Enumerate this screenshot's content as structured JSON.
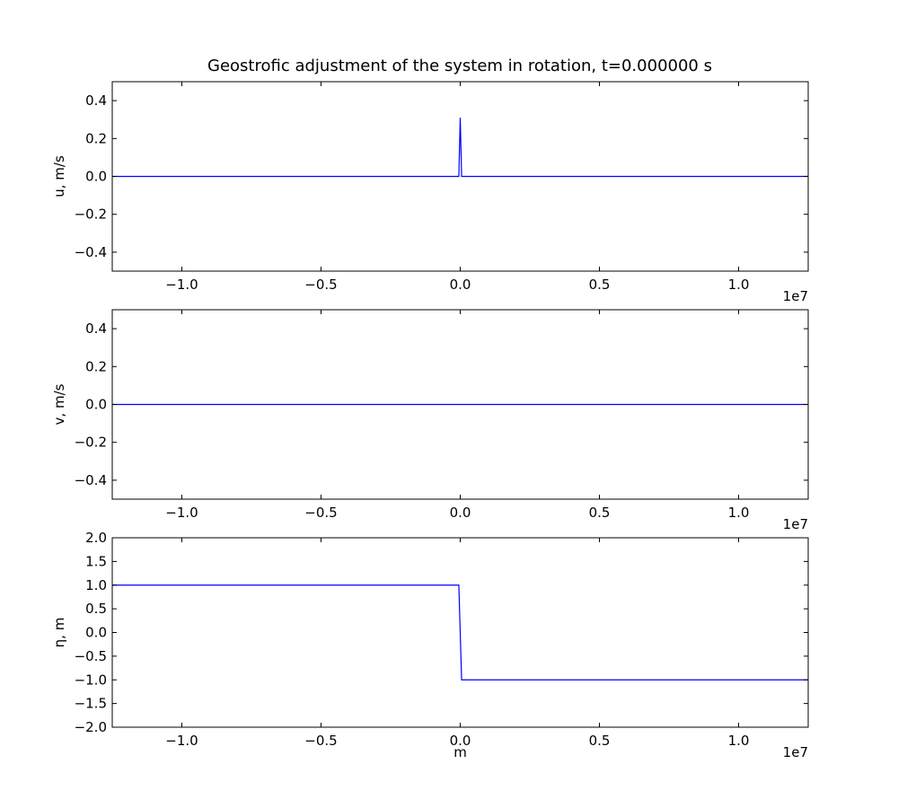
{
  "figure": {
    "title": "Geostrofic adjustment of the system in rotation, t=0.000000 s",
    "background": "#ffffff",
    "line_color": "#0000ff"
  },
  "chart_data": [
    {
      "type": "line",
      "name": "u-panel",
      "xlabel": "",
      "ylabel": "u, m/s",
      "x_offset_label": "1e7",
      "xlim": [
        -1.25,
        1.25
      ],
      "ylim": [
        -0.5,
        0.5
      ],
      "x_ticks": [
        -1.0,
        -0.5,
        0.0,
        0.5,
        1.0
      ],
      "x_tick_labels": [
        "−1.0",
        "−0.5",
        "0.0",
        "0.5",
        "1.0"
      ],
      "y_ticks": [
        -0.4,
        -0.2,
        0.0,
        0.2,
        0.4
      ],
      "y_tick_labels": [
        "−0.4",
        "−0.2",
        "0.0",
        "0.2",
        "0.4"
      ],
      "grid": false,
      "series": [
        {
          "x": [
            -1.25,
            -0.005,
            0.0,
            0.005,
            1.25
          ],
          "y": [
            0.0,
            0.0,
            0.31,
            0.0,
            0.0
          ]
        }
      ]
    },
    {
      "type": "line",
      "name": "v-panel",
      "xlabel": "",
      "ylabel": "v, m/s",
      "x_offset_label": "1e7",
      "xlim": [
        -1.25,
        1.25
      ],
      "ylim": [
        -0.5,
        0.5
      ],
      "x_ticks": [
        -1.0,
        -0.5,
        0.0,
        0.5,
        1.0
      ],
      "x_tick_labels": [
        "−1.0",
        "−0.5",
        "0.0",
        "0.5",
        "1.0"
      ],
      "y_ticks": [
        -0.4,
        -0.2,
        0.0,
        0.2,
        0.4
      ],
      "y_tick_labels": [
        "−0.4",
        "−0.2",
        "0.0",
        "0.2",
        "0.4"
      ],
      "grid": false,
      "series": [
        {
          "x": [
            -1.25,
            1.25
          ],
          "y": [
            0.0,
            0.0
          ]
        }
      ]
    },
    {
      "type": "line",
      "name": "eta-panel",
      "xlabel": "m",
      "ylabel": "η, m",
      "x_offset_label": "1e7",
      "xlim": [
        -1.25,
        1.25
      ],
      "ylim": [
        -2.0,
        2.0
      ],
      "x_ticks": [
        -1.0,
        -0.5,
        0.0,
        0.5,
        1.0
      ],
      "x_tick_labels": [
        "−1.0",
        "−0.5",
        "0.0",
        "0.5",
        "1.0"
      ],
      "y_ticks": [
        -2.0,
        -1.5,
        -1.0,
        -0.5,
        0.0,
        0.5,
        1.0,
        1.5,
        2.0
      ],
      "y_tick_labels": [
        "−2.0",
        "−1.5",
        "−1.0",
        "−0.5",
        "0.0",
        "0.5",
        "1.0",
        "1.5",
        "2.0"
      ],
      "grid": false,
      "series": [
        {
          "x": [
            -1.25,
            -0.005,
            0.005,
            1.25
          ],
          "y": [
            1.0,
            1.0,
            -1.0,
            -1.0
          ]
        }
      ]
    }
  ]
}
